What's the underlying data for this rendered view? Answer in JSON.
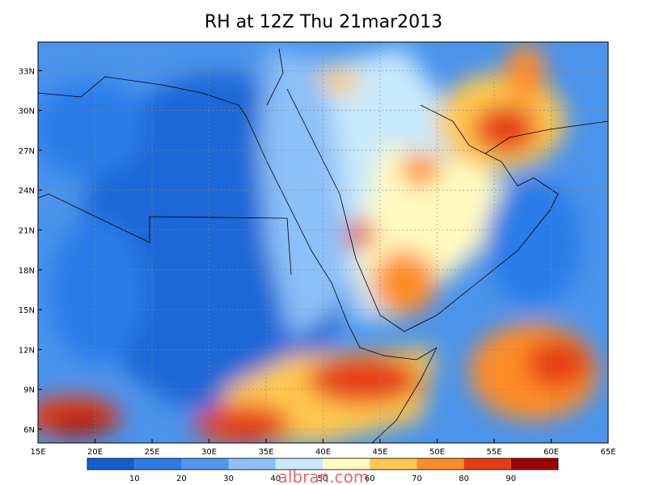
{
  "title": "RH at 12Z Thu 21mar2013",
  "x_axis": {
    "ticks": [
      "15E",
      "20E",
      "25E",
      "30E",
      "35E",
      "40E",
      "45E",
      "50E",
      "55E",
      "60E",
      "65E"
    ]
  },
  "y_axis": {
    "ticks": [
      "6N",
      "9N",
      "12N",
      "15N",
      "18N",
      "21N",
      "24N",
      "27N",
      "30N",
      "33N"
    ]
  },
  "colorbar": {
    "colors": [
      "#1460d0",
      "#2a7ce8",
      "#5096f0",
      "#8cc0f8",
      "#c8e8fc",
      "#fffac0",
      "#ffc850",
      "#ff8c28",
      "#e63c14",
      "#a00000"
    ],
    "labels": [
      "10",
      "20",
      "30",
      "40",
      "50",
      "60",
      "70",
      "80",
      "90"
    ]
  },
  "watermark": "albran.com"
}
